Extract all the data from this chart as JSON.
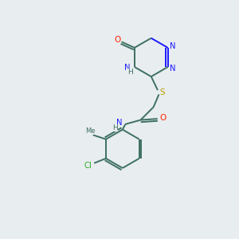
{
  "bg_color": "#e8edf0",
  "bond_color": "#3d7060",
  "n_color": "#1a1aff",
  "o_color": "#ff2200",
  "s_color": "#b8a000",
  "cl_color": "#22aa22",
  "bond_width": 1.4,
  "figsize": [
    3.0,
    3.0
  ],
  "dpi": 100,
  "xlim": [
    0,
    10
  ],
  "ylim": [
    0,
    10
  ]
}
